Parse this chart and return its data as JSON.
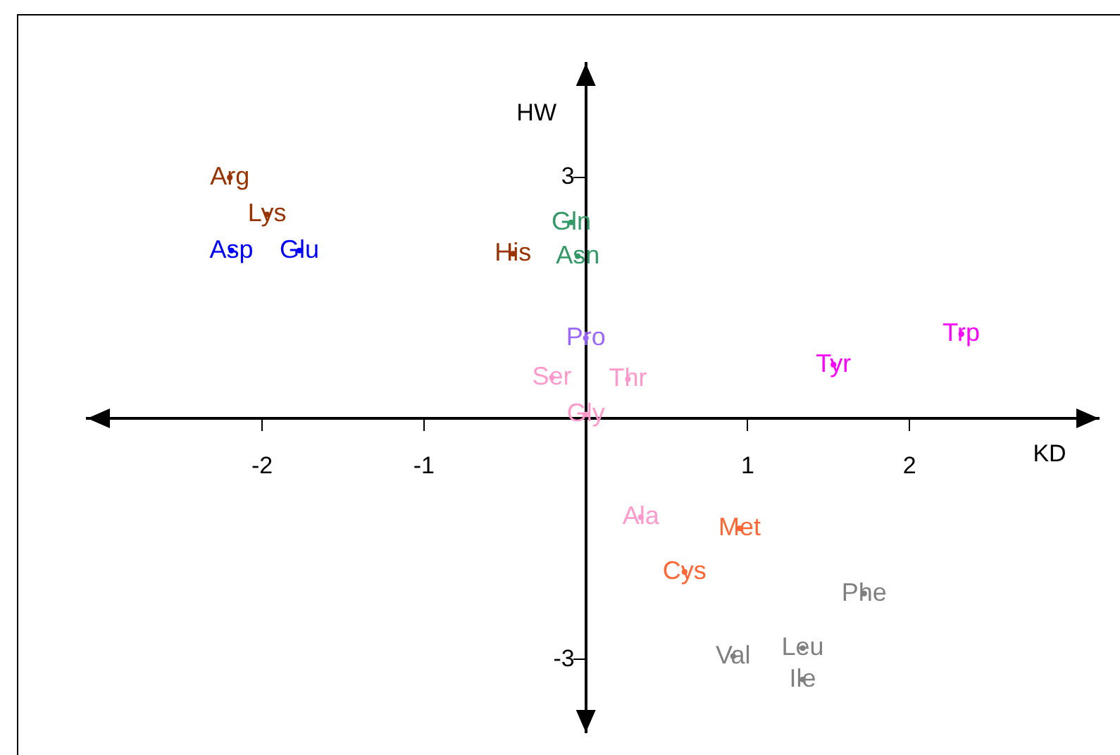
{
  "chart_data": {
    "type": "scatter",
    "xlabel": "KD",
    "ylabel": "HW",
    "marker": "circle",
    "grid": false,
    "legend": false,
    "xlim": [
      -3.08,
      3.17
    ],
    "ylim": [
      -3.91,
      4.42
    ],
    "xticks": [
      -2,
      -1,
      1,
      2
    ],
    "yticks": [
      3,
      -3
    ],
    "series": [
      {
        "color": "#993300",
        "x": [
          -2.2,
          -1.97,
          -0.45
        ],
        "values": [
          3.0,
          2.54,
          2.05
        ],
        "value_labels": [
          "Arg",
          "Lys",
          "His"
        ]
      },
      {
        "color": "#0000ff",
        "x": [
          -2.19,
          -1.77
        ],
        "values": [
          2.09,
          2.09
        ],
        "value_labels": [
          "Asp",
          "Glu"
        ]
      },
      {
        "color": "#339966",
        "x": [
          -0.09,
          -0.05
        ],
        "values": [
          2.44,
          2.02
        ],
        "value_labels": [
          "Gln",
          "Asn"
        ]
      },
      {
        "color": "#9966ff",
        "x": [
          0.0
        ],
        "values": [
          1.0
        ],
        "value_labels": [
          "Pro"
        ]
      },
      {
        "color": "#ff99cc",
        "x": [
          -0.21,
          0.26,
          0.0,
          0.34
        ],
        "values": [
          0.51,
          0.49,
          0.05,
          -1.23
        ],
        "value_labels": [
          "Ser",
          "Thr",
          "Gly",
          "Ala"
        ]
      },
      {
        "color": "#ff00ff",
        "x": [
          1.53,
          2.32
        ],
        "values": [
          0.67,
          1.05
        ],
        "value_labels": [
          "Tyr",
          "Trp"
        ]
      },
      {
        "color": "#ff6633",
        "x": [
          0.95,
          0.61
        ],
        "values": [
          -1.37,
          -1.91
        ],
        "value_labels": [
          "Met",
          "Cys"
        ]
      },
      {
        "color": "#808080",
        "x": [
          1.72,
          0.91,
          1.34,
          1.34
        ],
        "values": [
          -2.18,
          -2.96,
          -2.86,
          -3.25
        ],
        "value_labels": [
          "Phe",
          "Val",
          "Leu",
          "Ile"
        ]
      }
    ]
  }
}
